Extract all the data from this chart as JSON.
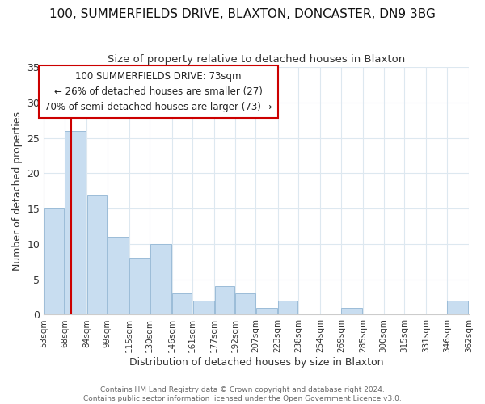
{
  "title": "100, SUMMERFIELDS DRIVE, BLAXTON, DONCASTER, DN9 3BG",
  "subtitle": "Size of property relative to detached houses in Blaxton",
  "xlabel": "Distribution of detached houses by size in Blaxton",
  "ylabel": "Number of detached properties",
  "bar_color": "#c8ddf0",
  "bar_edge_color": "#9bbcd8",
  "vline_x": 73,
  "vline_color": "#cc0000",
  "bin_edges_sqm": [
    53,
    68,
    84,
    99,
    115,
    130,
    146,
    161,
    177,
    192,
    207,
    223,
    238,
    254,
    269,
    285,
    300,
    315,
    331,
    346,
    362
  ],
  "categories": [
    "53sqm",
    "68sqm",
    "84sqm",
    "99sqm",
    "115sqm",
    "130sqm",
    "146sqm",
    "161sqm",
    "177sqm",
    "192sqm",
    "207sqm",
    "223sqm",
    "238sqm",
    "254sqm",
    "269sqm",
    "285sqm",
    "300sqm",
    "315sqm",
    "331sqm",
    "346sqm",
    "362sqm"
  ],
  "values": [
    15,
    26,
    17,
    11,
    8,
    10,
    3,
    2,
    4,
    3,
    1,
    2,
    0,
    0,
    1,
    0,
    0,
    0,
    0,
    2
  ],
  "ylim": [
    0,
    35
  ],
  "yticks": [
    0,
    5,
    10,
    15,
    20,
    25,
    30,
    35
  ],
  "annotation_line1": "100 SUMMERFIELDS DRIVE: 73sqm",
  "annotation_line2": "← 26% of detached houses are smaller (27)",
  "annotation_line3": "70% of semi-detached houses are larger (73) →",
  "annotation_box_color": "#ffffff",
  "annotation_box_edge": "#cc0000",
  "footer1": "Contains HM Land Registry data © Crown copyright and database right 2024.",
  "footer2": "Contains public sector information licensed under the Open Government Licence v3.0."
}
